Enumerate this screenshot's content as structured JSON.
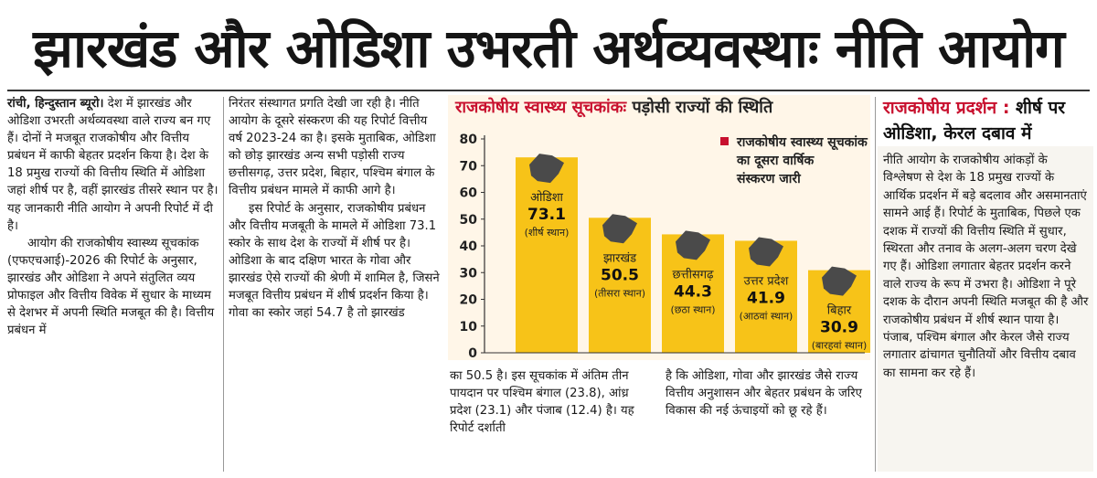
{
  "headline": "झारखंड और ओडिशा उभरती अर्थव्यवस्थाः नीति आयोग",
  "col1": {
    "dateline": "रांची, हिन्दुस्तान ब्यूरो।",
    "p1": "देश में झारखंड और ओडिशा उभरती अर्थव्यवस्था वाले राज्य बन गए हैं। दोनों ने मजबूत राजकोषीय और वित्तीय प्रबंधन में काफी बेहतर प्रदर्शन किया है। देश के 18 प्रमुख राज्यों की वित्तीय स्थिति में ओडिशा जहां शीर्ष पर है, वहीं झारखंड तीसरे स्थान पर है। यह जानकारी नीति आयोग ने अपनी रिपोर्ट में दी है।",
    "p2": "आयोग की राजकोषीय स्वास्थ्य सूचकांक (एफएचआई)-2026 की रिपोर्ट के अनुसार, झारखंड और ओडिशा ने अपने संतुलित व्यय प्रोफाइल और वित्तीय विवेक में सुधार के माध्यम से देशभर में अपनी स्थिति मजबूत की है। वित्तीय प्रबंधन में"
  },
  "col2": {
    "p1": "निरंतर संस्थागत प्रगति देखी जा रही है। नीति आयोग के दूसरे संस्करण की यह रिपोर्ट वित्तीय वर्ष 2023-24 का है। इसके मुताबिक, ओडिशा को छोड़ झारखंड अन्य सभी पड़ोसी राज्य छत्तीसगढ़, उत्तर प्रदेश, बिहार, पश्चिम बंगाल के वित्तीय प्रबंधन मामले में काफी आगे है।",
    "p2": "इस रिपोर्ट के अनुसार, राजकोषीय प्रबंधन और वित्तीय मजबूती के मामले में ओडिशा 73.1 स्कोर के साथ देश के राज्यों में शीर्ष पर है। ओडिशा के बाद दक्षिण भारत के गोवा और झारखंड ऐसे राज्यों की श्रेणी में शामिल है, जिसने मजबूत वित्तीय प्रबंधन में शीर्ष प्रदर्शन किया है। गोवा का स्कोर जहां 54.7 है तो झारखंड"
  },
  "below": {
    "left": "का 50.5 है। इस सूचकांक में अंतिम तीन पायदान पर पश्चिम बंगाल (23.8), आंध्र प्रदेश (23.1) और पंजाब (12.4) है। यह रिपोर्ट दर्शाती",
    "right": "है कि ओडिशा, गोवा और झारखंड जैसे राज्य वित्तीय अनुशासन और बेहतर प्रबंधन के जरिए विकास की नई ऊंचाइयों को छू रहे हैं।"
  },
  "sidebar": {
    "title_red": "राजकोषीय प्रदर्शन :",
    "title_rest": "शीर्ष पर ओडिशा, केरल दबाव में",
    "text": "नीति आयोग के राजकोषीय आंकड़ों के विश्लेषण से देश के 18 प्रमुख राज्यों के आर्थिक प्रदर्शन में बड़े बदलाव और असमानताएं सामने आई हैं। रिपोर्ट के मुताबिक, पिछले एक दशक में राज्यों की वित्तीय स्थिति में सुधार, स्थिरता और तनाव के अलग-अलग चरण देखे गए हैं। ओडिशा लगातार बेहतर प्रदर्शन करने वाले राज्य के रूप में उभरा है। ओडिशा ने पूरे दशक के दौरान अपनी स्थिति मजबूत की है और राजकोषीय प्रबंधन में शीर्ष स्थान पाया है। पंजाब, पश्चिम बंगाल और केरल जैसे राज्य लगातार ढांचागत चुनौतियों और वित्तीय दबाव का सामना कर रहे हैं।"
  },
  "colors": {
    "bar": "#f7c318",
    "accent_red": "#c8102e",
    "chart_bg": "#fff6e8",
    "map": "#4a4a4a"
  },
  "chart_data": {
    "type": "bar",
    "title_red": "राजकोषीय स्वास्थ्य सूचकांकः",
    "title_rest": "पड़ोसी राज्यों की स्थिति",
    "legend": "राजकोषीय स्वास्थ्य सूचकांक का दूसरा वार्षिक संस्करण जारी",
    "categories": [
      "ओडिशा",
      "झारखंड",
      "छत्तीसगढ़",
      "उत्तर प्रदेश",
      "बिहार"
    ],
    "values": [
      73.1,
      50.5,
      44.3,
      41.9,
      30.9
    ],
    "ranks": [
      "(शीर्ष स्थान)",
      "(तीसरा स्थान)",
      "(छठा स्थान)",
      "(आठवां स्थान)",
      "(बारहवां स्थान)"
    ],
    "yticks": [
      "0",
      "10",
      "20",
      "30",
      "40",
      "50",
      "60",
      "70",
      "80"
    ],
    "ylim": [
      0,
      80
    ],
    "grid": false,
    "legend_position": "top-right"
  }
}
